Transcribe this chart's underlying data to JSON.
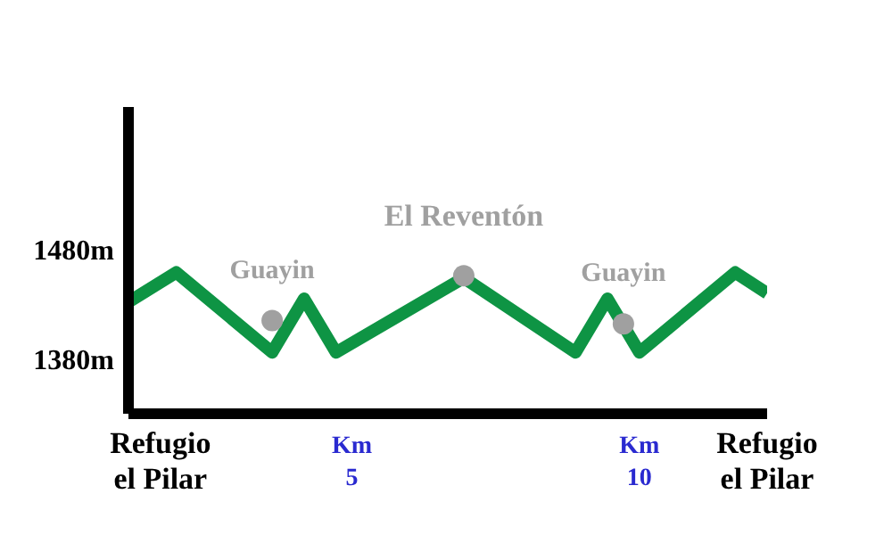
{
  "chart_data": {
    "type": "line",
    "categories": [
      null,
      null,
      "Refugio el Pilar",
      null,
      null,
      null,
      null,
      null,
      null,
      null,
      null,
      null,
      null,
      null,
      "Km 5",
      null,
      null,
      null,
      null,
      null,
      null,
      null,
      null,
      null,
      null,
      null,
      null,
      null,
      null,
      null,
      null,
      null,
      "Km 10",
      null,
      null,
      null,
      null,
      null,
      null,
      null,
      "Refugio el Pilar"
    ],
    "ylim": [
      1330,
      1610
    ],
    "yticks": [
      {
        "value": 1380,
        "label": "1380m"
      },
      {
        "value": 1480,
        "label": "1480m"
      }
    ],
    "series": [
      {
        "color": "#0e9444",
        "values": [
          1432,
          null,
          null,
          1459,
          null,
          null,
          null,
          null,
          null,
          1386,
          null,
          1435,
          null,
          1386,
          null,
          null,
          null,
          null,
          null,
          null,
          null,
          1454,
          null,
          null,
          null,
          null,
          null,
          null,
          1386,
          null,
          1435,
          null,
          1386,
          null,
          null,
          null,
          null,
          null,
          1459,
          null,
          1440
        ]
      },
      {
        "type": "scatter",
        "marker": "circle",
        "color": "#a0a0a0",
        "values": [
          null,
          null,
          null,
          null,
          null,
          null,
          null,
          null,
          null,
          1415,
          null,
          null,
          null,
          null,
          null,
          null,
          null,
          null,
          null,
          null,
          null,
          1456,
          null,
          null,
          null,
          null,
          null,
          null,
          null,
          null,
          null,
          1412,
          null,
          null,
          null,
          null,
          null,
          null,
          null,
          null,
          null
        ]
      }
    ],
    "annotations": [
      "Guayin",
      "El Reventón",
      "Guayin"
    ]
  }
}
